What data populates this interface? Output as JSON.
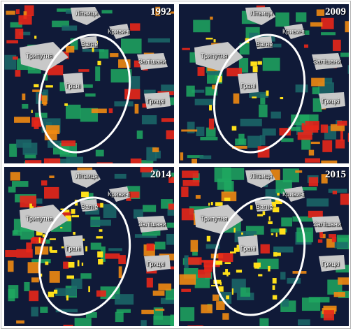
{
  "colors": {
    "background": "#101a38",
    "built_up": "#e8271a",
    "orange": "#f08a12",
    "yellow": "#ffe01a",
    "vegetation": "#1fa860",
    "teal": "#1b6a6a",
    "settlement": "#c8c8c8",
    "ellipse": "#ffffff"
  },
  "panels": [
    {
      "year": "1992",
      "places": {
        "litvica": "Літвиця",
        "kryvychi": "Кривичі",
        "vahne": "Вагне",
        "trypuptia": "Трипутня",
        "zalishany": "Залішани",
        "hrani": "Грані",
        "hrytsky": "Грицкі"
      }
    },
    {
      "year": "2009",
      "places": {
        "litvica": "Літвиця",
        "kryvychi": "Кривичі",
        "vahne": "Вагне",
        "trypuptia": "Трипутня",
        "zalishany": "Залішани",
        "hrani": "Грані",
        "hrytsky": "Грицкі"
      }
    },
    {
      "year": "2014",
      "places": {
        "litvica": "Літвиця",
        "kryvychi": "Кривичі",
        "vahne": "Вагне",
        "trypuptia": "Трипутня",
        "zalishany": "Залішани",
        "hrani": "Грані",
        "hrytsky": "Грицкі"
      }
    },
    {
      "year": "2015",
      "places": {
        "litvica": "Літвиця",
        "kryvychi": "Кривичі",
        "vahne": "Вагне",
        "trypuptia": "Трипутня",
        "zalishany": "Залішани",
        "hrani": "Грані",
        "hrytsky": "Грицкі"
      }
    }
  ]
}
